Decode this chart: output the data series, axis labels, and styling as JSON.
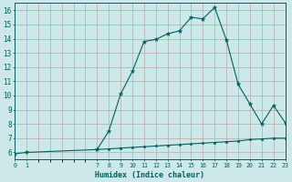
{
  "xlabel": "Humidex (Indice chaleur)",
  "bg_color": "#cce8e8",
  "grid_color": "#b8a8a8",
  "line_color": "#006060",
  "x_values": [
    0,
    1,
    7,
    8,
    9,
    10,
    11,
    12,
    13,
    14,
    15,
    16,
    17,
    18,
    19,
    20,
    21,
    22,
    23
  ],
  "y_main": [
    5.9,
    6.0,
    6.2,
    7.5,
    10.1,
    11.7,
    13.8,
    13.95,
    14.35,
    14.55,
    15.5,
    15.4,
    16.2,
    13.9,
    10.8,
    9.4,
    8.0,
    9.3,
    8.1
  ],
  "y_second": [
    null,
    null,
    6.2,
    6.25,
    6.3,
    6.35,
    6.4,
    6.45,
    6.5,
    6.55,
    6.6,
    6.65,
    6.7,
    6.75,
    6.8,
    6.9,
    6.95,
    7.0,
    7.0
  ],
  "ylim": [
    5.5,
    16.5
  ],
  "yticks": [
    6,
    7,
    8,
    9,
    10,
    11,
    12,
    13,
    14,
    15,
    16
  ],
  "xticks": [
    0,
    1,
    7,
    8,
    9,
    10,
    11,
    12,
    13,
    14,
    15,
    16,
    17,
    18,
    19,
    20,
    21,
    22,
    23
  ],
  "xlim": [
    0,
    23
  ],
  "grid_xticks": [
    0,
    1,
    2,
    3,
    4,
    5,
    6,
    7,
    8,
    9,
    10,
    11,
    12,
    13,
    14,
    15,
    16,
    17,
    18,
    19,
    20,
    21,
    22,
    23
  ]
}
